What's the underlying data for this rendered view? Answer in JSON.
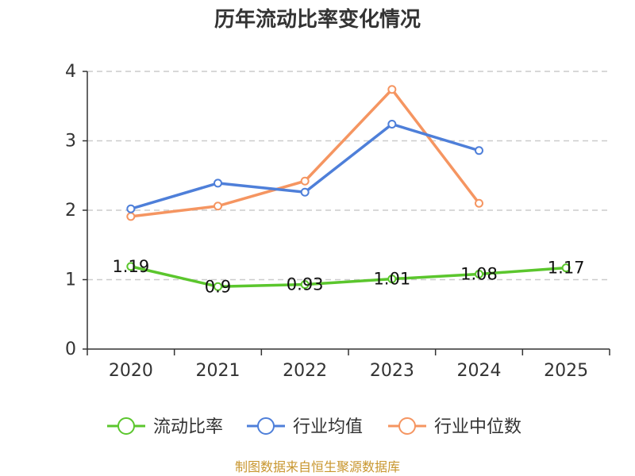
{
  "chart_data": {
    "type": "line",
    "title": "历年流动比率变化情况",
    "categories": [
      "2020",
      "2021",
      "2022",
      "2023",
      "2024",
      "2025"
    ],
    "ylim": [
      0,
      4
    ],
    "yticks": [
      "0",
      "1",
      "2",
      "3",
      "4"
    ],
    "grid": true,
    "legend_position": "bottom",
    "series": [
      {
        "name": "流动比率",
        "color": "#5bc62d",
        "values": [
          1.19,
          0.9,
          0.93,
          1.01,
          1.08,
          1.17
        ],
        "labels": [
          "1.19",
          "0.9",
          "0.93",
          "1.01",
          "1.08",
          "1.17"
        ]
      },
      {
        "name": "行业均值",
        "color": "#4e7fd9",
        "values": [
          2.02,
          2.39,
          2.26,
          3.24,
          2.86,
          null
        ]
      },
      {
        "name": "行业中位数",
        "color": "#f59561",
        "values": [
          1.91,
          2.06,
          2.42,
          3.74,
          2.1,
          null
        ]
      }
    ]
  },
  "footer": {
    "source": "制图数据来自恒生聚源数据库"
  }
}
